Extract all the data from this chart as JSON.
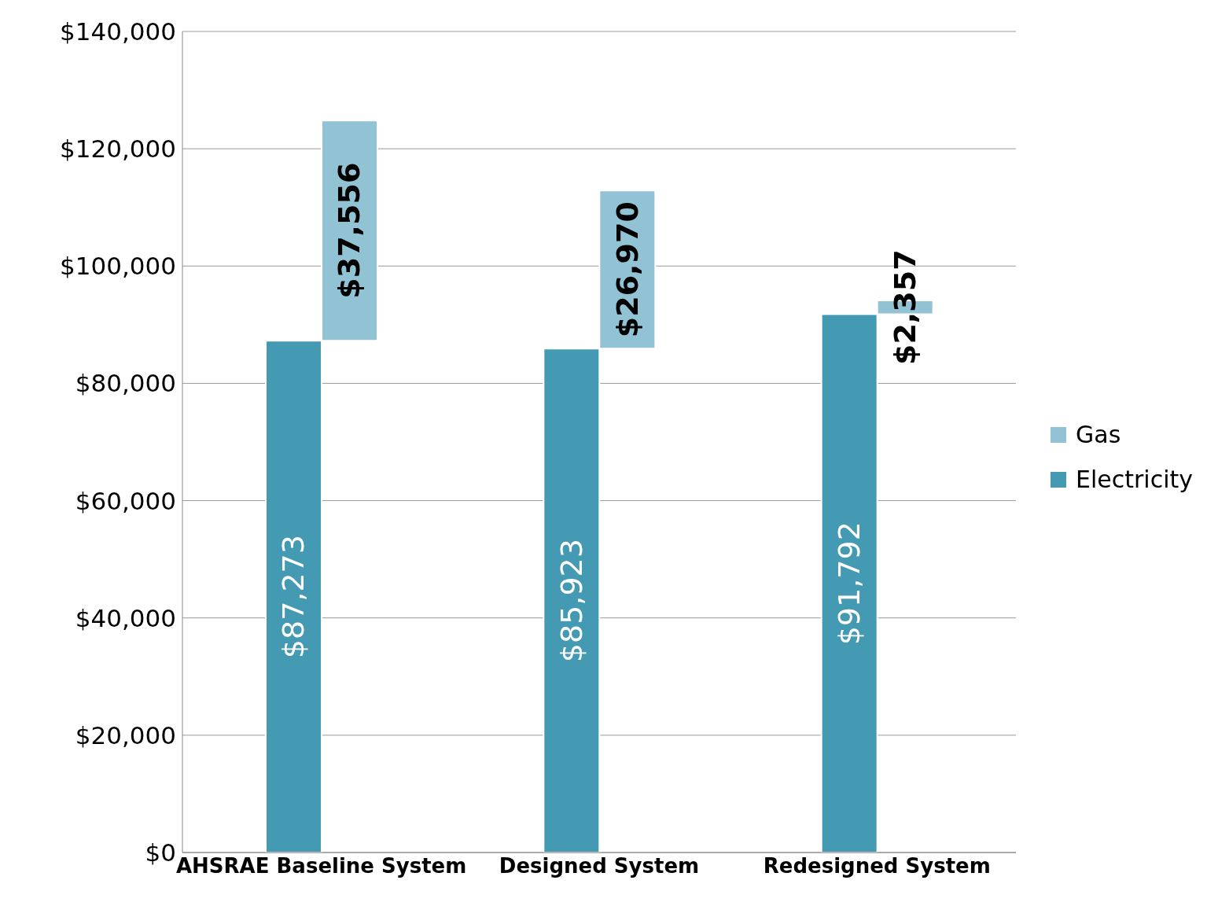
{
  "chart_data": {
    "type": "bar",
    "categories": [
      "AHSRAE Baseline System",
      "Designed System",
      "Redesigned System"
    ],
    "series": [
      {
        "name": "Gas",
        "color": "#92c3d5",
        "values": [
          37556,
          26970,
          2357
        ],
        "base": [
          87273,
          85923,
          91792
        ],
        "value_labels": [
          "$37,556",
          "$26,970",
          "$2,357"
        ]
      },
      {
        "name": "Electricity",
        "color": "#4499b3",
        "values": [
          87273,
          85923,
          91792
        ],
        "value_labels": [
          "$87,273",
          "$85,923",
          "$91,792"
        ]
      }
    ],
    "ylim": [
      0,
      140000
    ],
    "yticks": [
      {
        "value": 0,
        "label": "$0"
      },
      {
        "value": 20000,
        "label": "$20,000"
      },
      {
        "value": 40000,
        "label": "$40,000"
      },
      {
        "value": 60000,
        "label": "$60,000"
      },
      {
        "value": 80000,
        "label": "$80,000"
      },
      {
        "value": 100000,
        "label": "$100,000"
      },
      {
        "value": 120000,
        "label": "$120,000"
      },
      {
        "value": 140000,
        "label": "$140,000"
      }
    ],
    "grid": "y",
    "legend": "right"
  }
}
